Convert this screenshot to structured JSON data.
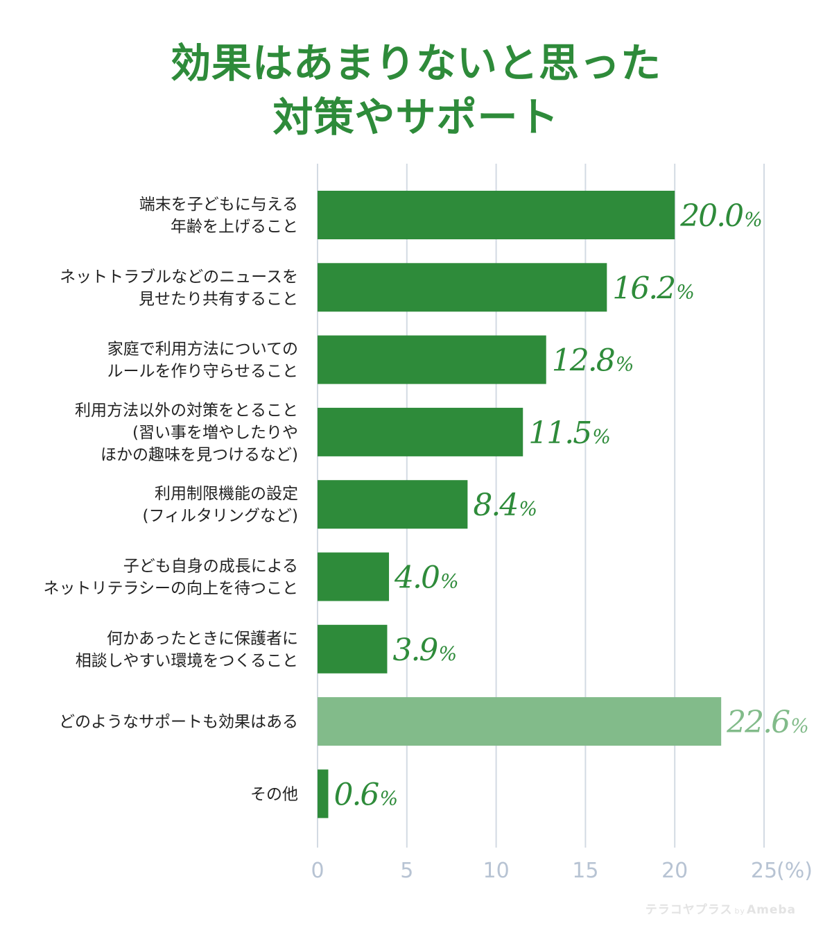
{
  "title": {
    "line1": "効果はあまりないと思った",
    "line2": "対策やサポート"
  },
  "watermark": {
    "brand": "テラコヤプラス",
    "by": "by",
    "sub": "Ameba"
  },
  "colors": {
    "title": "#2e8b3a",
    "bar": "#2e8b3a",
    "bar_light": "#82bb8a",
    "grid": "#d3dae3",
    "tick": "#b7c3d3"
  },
  "chart_data": {
    "type": "bar",
    "orientation": "horizontal",
    "title": "効果はあまりないと思った対策やサポート",
    "categories": [
      [
        "端末を子どもに与える",
        "年齢を上げること"
      ],
      [
        "ネットトラブルなどのニュースを",
        "見せたり共有すること"
      ],
      [
        "家庭で利用方法についての",
        "ルールを作り守らせること"
      ],
      [
        "利用方法以外の対策をとること",
        "(習い事を増やしたりや",
        "ほかの趣味を見つけるなど)"
      ],
      [
        "利用制限機能の設定",
        "(フィルタリングなど)"
      ],
      [
        "子ども自身の成長による",
        "ネットリテラシーの向上を待つこと"
      ],
      [
        "何かあったときに保護者に",
        "相談しやすい環境をつくること"
      ],
      [
        "どのようなサポートも効果はある"
      ],
      [
        "その他"
      ]
    ],
    "values": [
      20.0,
      16.2,
      12.8,
      11.5,
      8.4,
      4.0,
      3.9,
      22.6,
      0.6
    ],
    "value_labels": [
      "20.0",
      "16.2",
      "12.8",
      "11.5",
      "8.4",
      "4.0",
      "3.9",
      "22.6",
      "0.6"
    ],
    "unit": "%",
    "highlight": [
      false,
      false,
      false,
      false,
      false,
      false,
      false,
      true,
      false
    ],
    "xlim": [
      0,
      25
    ],
    "xticks": [
      "0",
      "5",
      "10",
      "15",
      "20",
      "25"
    ],
    "x_unit_label": "(%)",
    "grid": true
  }
}
